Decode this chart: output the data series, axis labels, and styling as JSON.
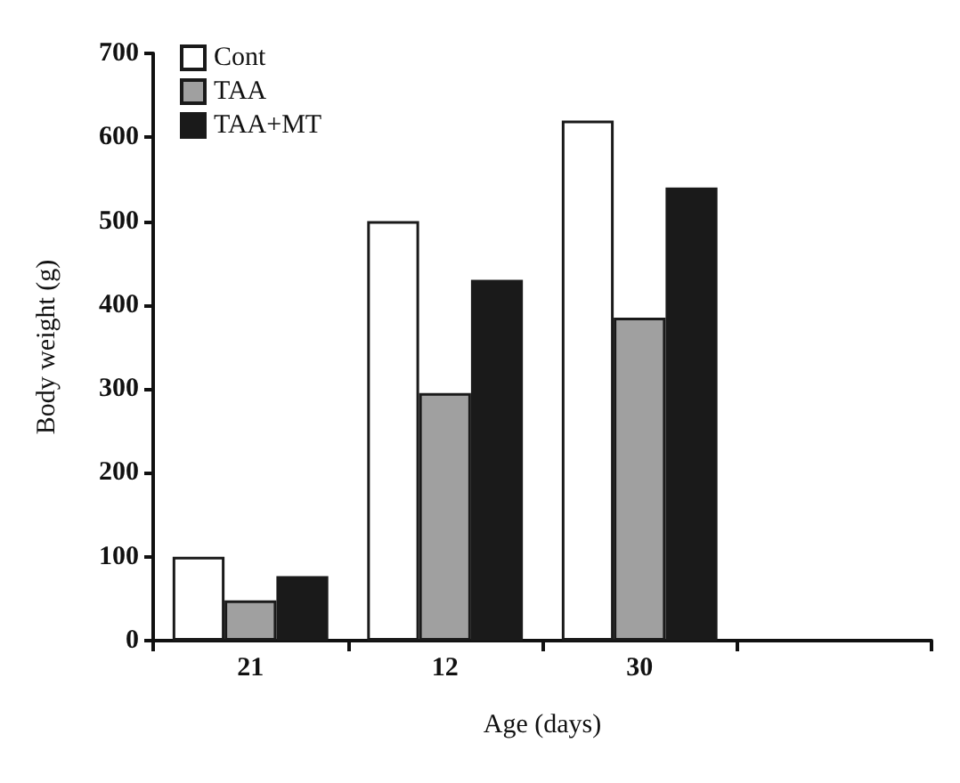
{
  "chart_data": {
    "type": "bar",
    "xlabel": "Age (days)",
    "ylabel": "Body weight (g)",
    "categories": [
      "21",
      "12",
      "30",
      null
    ],
    "series": [
      {
        "name": "Cont",
        "color": "#ffffff",
        "values": [
          100,
          500,
          620,
          null
        ]
      },
      {
        "name": "TAA",
        "color": "#a0a0a0",
        "values": [
          48,
          295,
          385,
          null
        ]
      },
      {
        "name": "TAA+MT",
        "color": "#1a1a1a",
        "values": [
          77,
          430,
          540,
          null
        ]
      }
    ],
    "ylim": [
      0,
      700
    ],
    "yticks": [
      0,
      100,
      200,
      300,
      400,
      500,
      600,
      700
    ],
    "grid": false,
    "legend": "top left"
  }
}
